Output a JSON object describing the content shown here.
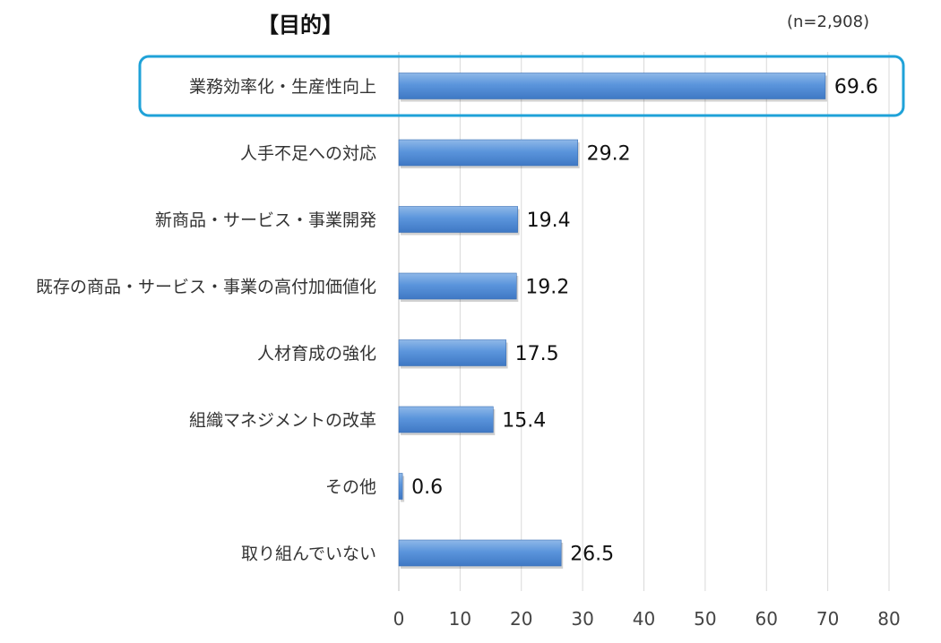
{
  "chart_data": {
    "type": "bar",
    "orientation": "horizontal",
    "title": "【目的】",
    "note": "(n=2,908)",
    "categories": [
      "業務効率化・生産性向上",
      "人手不足への対応",
      "新商品・サービス・事業開発",
      "既存の商品・サービス・事業の高付加価値化",
      "人材育成の強化",
      "組織マネジメントの改革",
      "その他",
      "取り組んでいない"
    ],
    "values": [
      69.6,
      29.2,
      19.4,
      19.2,
      17.5,
      15.4,
      0.6,
      26.5
    ],
    "value_labels": [
      "69.6",
      "29.2",
      "19.4",
      "19.2",
      "17.5",
      "15.4",
      "0.6",
      "26.5"
    ],
    "xlim": [
      0,
      80
    ],
    "xticks": [
      0,
      10,
      20,
      30,
      40,
      50,
      60,
      70,
      80
    ],
    "tick_labels": [
      "0",
      "10",
      "20",
      "30",
      "40",
      "50",
      "60",
      "70",
      "80"
    ],
    "grid": "vertical",
    "highlighted_category": "業務効率化・生産性向上",
    "colors": {
      "bar_top": "#8fb8e8",
      "bar_mid": "#5b95dc",
      "bar_bottom": "#3f78c4",
      "grid": "#d9d9d9",
      "axis": "#bfbfbf",
      "highlight": "#1fa2d8"
    }
  }
}
